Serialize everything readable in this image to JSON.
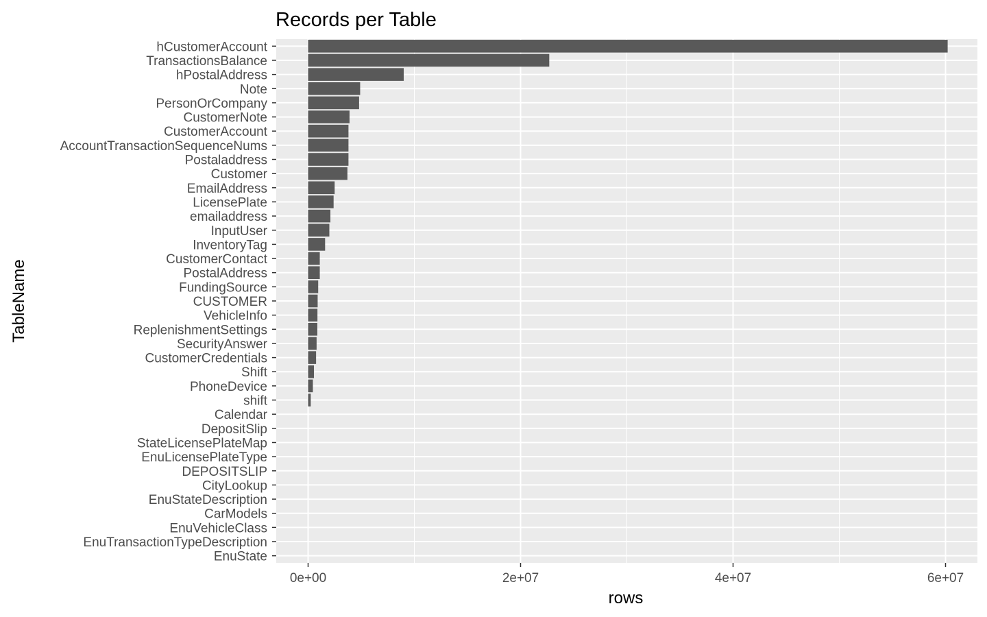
{
  "chart_data": {
    "type": "bar",
    "orientation": "horizontal",
    "title": "Records per Table",
    "xlabel": "rows",
    "ylabel": "TableName",
    "xlim": [
      -3000000,
      63000000
    ],
    "x_ticks": [
      0,
      20000000,
      40000000,
      60000000
    ],
    "x_tick_labels": [
      "0e+00",
      "2e+07",
      "4e+07",
      "6e+07"
    ],
    "grid": true,
    "background": "#ebebeb",
    "bar_color": "#595959",
    "gridline_color": "#ffffff",
    "categories": [
      "hCustomerAccount",
      "TransactionsBalance",
      "hPostalAddress",
      "Note",
      "PersonOrCompany",
      "CustomerNote",
      "CustomerAccount",
      "AccountTransactionSequenceNums",
      "Postaladdress",
      "Customer",
      "EmailAddress",
      "LicensePlate",
      "emailaddress",
      "InputUser",
      "InventoryTag",
      "CustomerContact",
      "PostalAddress",
      "FundingSource",
      "CUSTOMER",
      "VehicleInfo",
      "ReplenishmentSettings",
      "SecurityAnswer",
      "CustomerCredentials",
      "Shift",
      "PhoneDevice",
      "shift",
      "Calendar",
      "DepositSlip",
      "StateLicensePlateMap",
      "EnuLicensePlateType",
      "DEPOSITSLIP",
      "CityLookup",
      "EnuStateDescription",
      "CarModels",
      "EnuVehicleClass",
      "EnuTransactionTypeDescription",
      "EnuState"
    ],
    "values": [
      60200000,
      22700000,
      9000000,
      4900000,
      4800000,
      3900000,
      3800000,
      3800000,
      3800000,
      3700000,
      2500000,
      2400000,
      2100000,
      2000000,
      1600000,
      1100000,
      1100000,
      950000,
      900000,
      880000,
      870000,
      800000,
      750000,
      550000,
      450000,
      250000,
      0,
      0,
      0,
      0,
      0,
      0,
      0,
      0,
      0,
      0,
      0
    ]
  }
}
